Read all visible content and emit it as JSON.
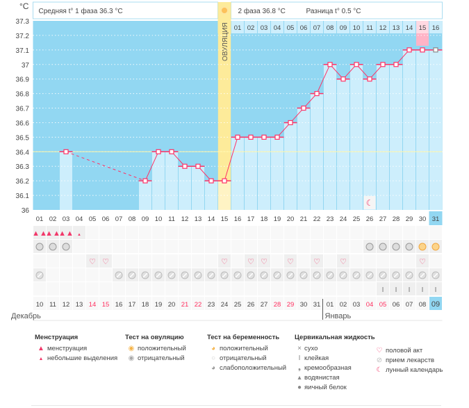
{
  "chart_data": {
    "type": "line",
    "title": "",
    "ylabel": "°C",
    "ylim": [
      36,
      37.3
    ],
    "yticks": [
      "37.3",
      "37.2",
      "37.1",
      "37",
      "36.9",
      "36.8",
      "36.7",
      "36.6",
      "36.5",
      "36.4",
      "36.3",
      "36.2",
      "36.1",
      "36"
    ],
    "cycle_days": [
      "01",
      "02",
      "03",
      "04",
      "05",
      "06",
      "07",
      "08",
      "09",
      "10",
      "11",
      "12",
      "13",
      "14",
      "15",
      "16",
      "17",
      "18",
      "19",
      "20",
      "21",
      "22",
      "23",
      "24",
      "25",
      "26",
      "27",
      "28",
      "29",
      "30",
      "31"
    ],
    "temperatures": [
      null,
      null,
      36.4,
      null,
      null,
      null,
      null,
      null,
      36.2,
      36.4,
      36.4,
      36.3,
      36.3,
      36.2,
      36.2,
      36.5,
      36.5,
      36.5,
      36.5,
      36.6,
      36.7,
      36.8,
      37.0,
      36.9,
      37.0,
      36.9,
      37.0,
      37.0,
      37.1,
      37.1,
      37.1
    ],
    "coverline": 36.4,
    "ovulation_day": 15,
    "ovulation_label": "ОВУЛЯЦИЯ",
    "phase2_days": [
      "01",
      "02",
      "03",
      "04",
      "05",
      "06",
      "07",
      "08",
      "09",
      "10",
      "11",
      "12",
      "13",
      "14",
      "15",
      "16"
    ],
    "highlight_phase2_day": 15,
    "moon_day": 26,
    "dates": [
      "10",
      "11",
      "12",
      "13",
      "14",
      "15",
      "16",
      "17",
      "18",
      "19",
      "20",
      "21",
      "22",
      "23",
      "24",
      "25",
      "26",
      "27",
      "28",
      "29",
      "30",
      "31",
      "01",
      "02",
      "03",
      "04",
      "05",
      "06",
      "07",
      "08",
      "09"
    ],
    "weekend_dates_idx": [
      4,
      5,
      11,
      12,
      18,
      19,
      25,
      26
    ],
    "months": {
      "first": "Декабрь",
      "second": "Январь"
    },
    "rows": {
      "menstruation": [
        2,
        2,
        2,
        1,
        0,
        0,
        0,
        0,
        0,
        0,
        0,
        0,
        0,
        0,
        0,
        0,
        0,
        0,
        0,
        0,
        0,
        0,
        0,
        0,
        0,
        0,
        0,
        0,
        0,
        0,
        0
      ],
      "test": [
        "g",
        "g",
        "g",
        "",
        "",
        "",
        "",
        "",
        "",
        "",
        "",
        "",
        "",
        "",
        "",
        "",
        "",
        "",
        "",
        "",
        "",
        "",
        "",
        "",
        "",
        "g",
        "g",
        "g",
        "g",
        "o",
        "o"
      ],
      "intercourse": [
        5,
        6,
        15,
        17,
        18,
        20,
        22,
        24,
        30
      ],
      "medication": [
        1,
        7,
        8,
        9,
        10,
        11,
        12,
        13,
        14,
        15,
        16,
        17,
        18,
        19,
        20,
        21,
        22,
        23,
        24,
        25,
        26,
        27,
        28,
        29,
        30,
        31
      ],
      "cervical_sticky": [
        27,
        28,
        29,
        30,
        31
      ]
    }
  },
  "header": {
    "phase1": "Средняя t° 1 фаза 36.3 °C",
    "phase2": "2 фаза 36.8 °C",
    "diff": "Разница t° 0.5 °C",
    "unit": "°C"
  },
  "legend": {
    "menstruation": {
      "title": "Менструация",
      "items": [
        "менструация",
        "небольшие выделения"
      ]
    },
    "ovulation_test": {
      "title": "Тест на овуляцию",
      "items": [
        "положительный",
        "отрицательный"
      ]
    },
    "pregnancy_test": {
      "title": "Тест на беременность",
      "items": [
        "положительный",
        "отрицательный",
        "слабоположительный"
      ]
    },
    "cervical": {
      "title": "Цервикальная жидкость",
      "items": [
        "сухо",
        "клейкая",
        "кремообразная",
        "водянистая",
        "яичный белок"
      ]
    },
    "other": {
      "items": [
        "половой акт",
        "прием лекарств",
        "лунный календарь"
      ]
    }
  },
  "colors": {
    "bg": "#92d7f2",
    "bar": "#cdeefc",
    "line": "#ff3366",
    "ovulation": "#fdeb9a",
    "pink": "#ffb3c6",
    "weekend": "#ff2f5f"
  }
}
